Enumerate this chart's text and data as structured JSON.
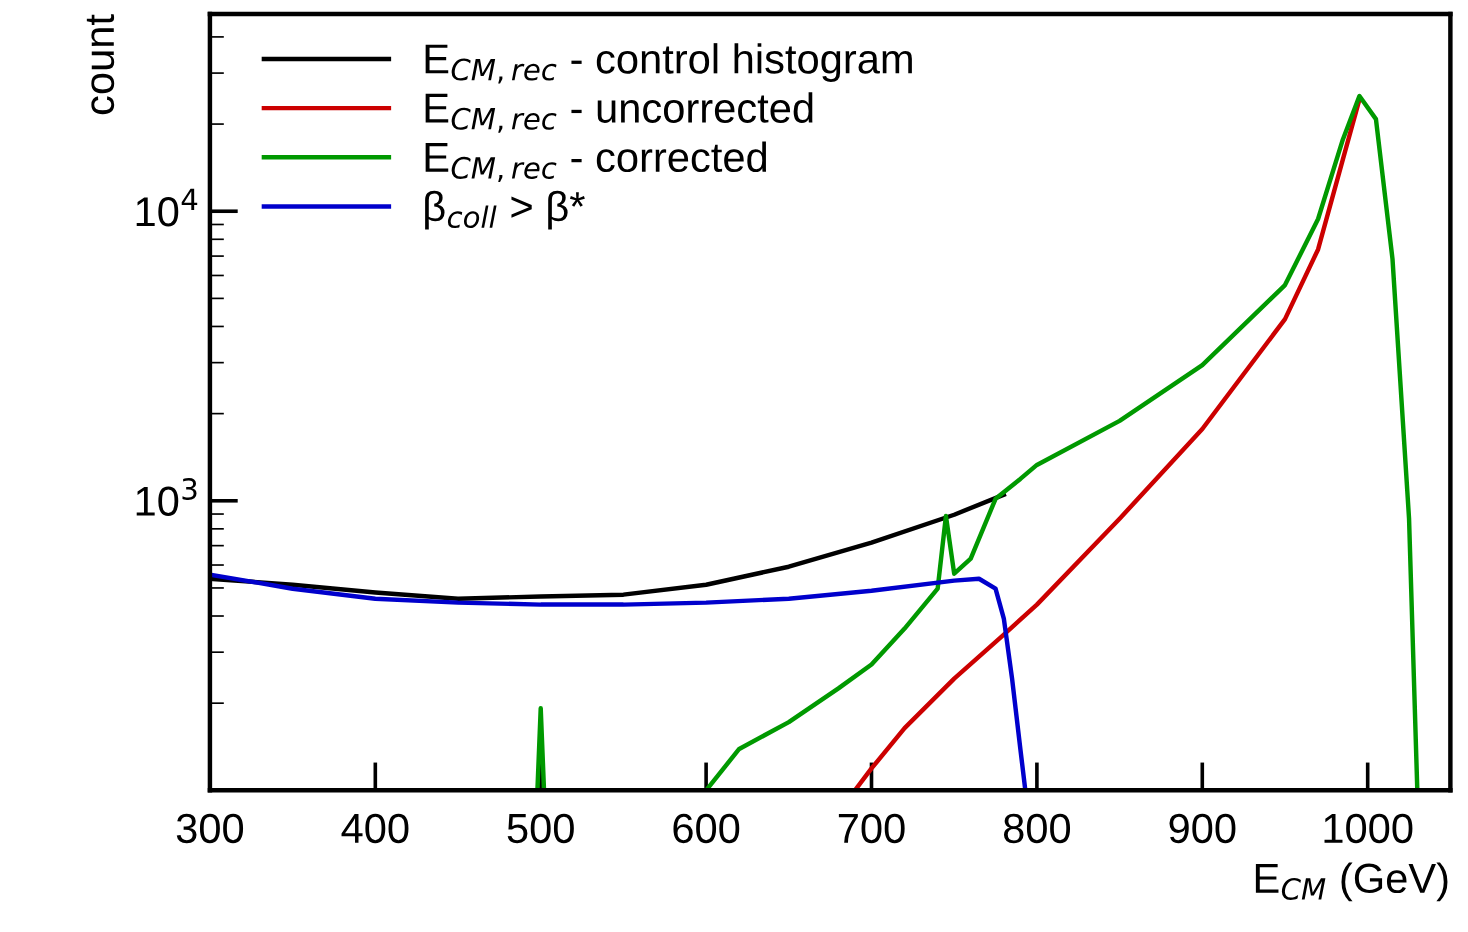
{
  "chart_data": {
    "type": "line",
    "xlabel": "E$_{CM}$ (GeV)",
    "ylabel": "count",
    "log": "y",
    "xlim": [
      300,
      1050
    ],
    "ylim": [
      100,
      48000
    ],
    "xticks": [
      300,
      400,
      500,
      600,
      700,
      800,
      900,
      1000
    ],
    "yticks": [
      {
        "value": 1000,
        "label": "10$^{3}$"
      },
      {
        "value": 10000,
        "label": "10$^{4}$"
      }
    ],
    "legend": "top left",
    "grid": false,
    "series": [
      {
        "name": "E$_{CM,rec}$ - control histogram",
        "color": "#000000",
        "x": [
          300,
          350,
          400,
          450,
          500,
          550,
          600,
          650,
          700,
          750,
          780
        ],
        "values": [
          538,
          513,
          482,
          459,
          467,
          474,
          513,
          592,
          717,
          895,
          1050
        ]
      },
      {
        "name": "E$_{CM,rec}$ - uncorrected",
        "color": "#cc0000",
        "x": [
          690,
          700,
          720,
          750,
          780,
          800,
          850,
          900,
          950,
          970,
          985,
          995
        ],
        "values": [
          100,
          119,
          164,
          243,
          345,
          438,
          867,
          1770,
          4240,
          7380,
          15100,
          24300
        ]
      },
      {
        "name": "E$_{CM,rec}$ - corrected",
        "color": "#009900",
        "x": [
          300,
          498,
          500,
          502,
          600,
          620,
          650,
          680,
          700,
          720,
          740,
          745,
          750,
          760,
          775,
          790,
          800,
          850,
          900,
          950,
          970,
          985,
          995,
          1005,
          1015,
          1025,
          1030,
          1050
        ],
        "values": [
          100,
          100,
          192,
          100,
          100,
          139,
          172,
          225,
          272,
          362,
          497,
          886,
          560,
          631,
          1016,
          1190,
          1330,
          1888,
          2940,
          5560,
          9400,
          17700,
          25000,
          20800,
          6840,
          870,
          100,
          100
        ]
      },
      {
        "name": "β$_{coll}$ > β*",
        "color": "#0000cc",
        "x": [
          300,
          350,
          400,
          450,
          500,
          550,
          600,
          650,
          700,
          750,
          765,
          775,
          780,
          785,
          790,
          793,
          1050
        ],
        "values": [
          556,
          497,
          459,
          445,
          438,
          438,
          445,
          459,
          489,
          530,
          538,
          497,
          392,
          243,
          139,
          100,
          100
        ]
      }
    ]
  }
}
